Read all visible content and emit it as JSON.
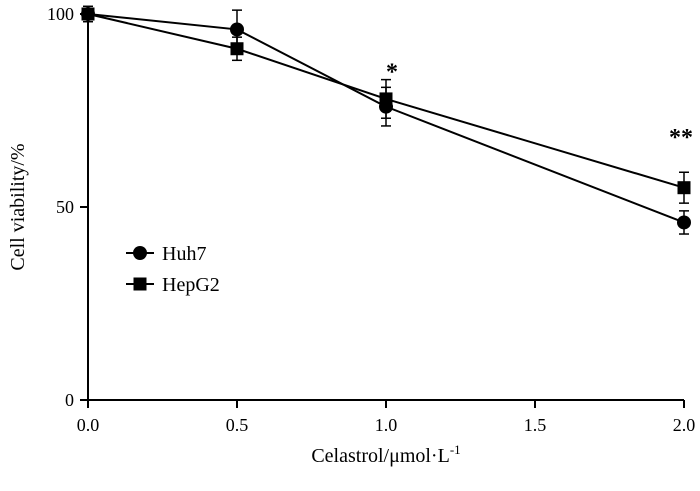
{
  "colors": {
    "foreground": "#000000",
    "background": "#ffffff"
  },
  "chart_data": {
    "type": "line",
    "title": "",
    "xlabel_main": "Celastrol/μmol·L",
    "xlabel_sup": "-1",
    "ylabel": "Cell viability/%",
    "xlim": [
      0.0,
      2.0
    ],
    "ylim": [
      0,
      100
    ],
    "grid": false,
    "x_ticks": [
      {
        "v": 0.0,
        "label": "0.0"
      },
      {
        "v": 0.5,
        "label": "0.5"
      },
      {
        "v": 1.0,
        "label": "1.0"
      },
      {
        "v": 1.5,
        "label": "1.5"
      },
      {
        "v": 2.0,
        "label": "2.0"
      }
    ],
    "y_ticks": [
      {
        "v": 0,
        "label": "0"
      },
      {
        "v": 50,
        "label": "50"
      },
      {
        "v": 100,
        "label": "100"
      }
    ],
    "x": [
      0.0,
      0.5,
      1.0,
      2.0
    ],
    "series": [
      {
        "name": "Huh7",
        "marker": "circle",
        "values": [
          100,
          96,
          76,
          46
        ],
        "errors": [
          1,
          5,
          5,
          3
        ]
      },
      {
        "name": "HepG2",
        "marker": "square",
        "values": [
          100,
          91,
          78,
          55
        ],
        "errors": [
          2,
          3,
          5,
          4
        ]
      }
    ],
    "annotations": [
      {
        "x": 1.02,
        "y": 83,
        "text": "*"
      },
      {
        "x": 1.99,
        "y": 66,
        "text": "**"
      }
    ],
    "legend": {
      "position": "inside-left",
      "items": [
        {
          "label": "Huh7",
          "marker": "circle"
        },
        {
          "label": "HepG2",
          "marker": "square"
        }
      ]
    }
  }
}
